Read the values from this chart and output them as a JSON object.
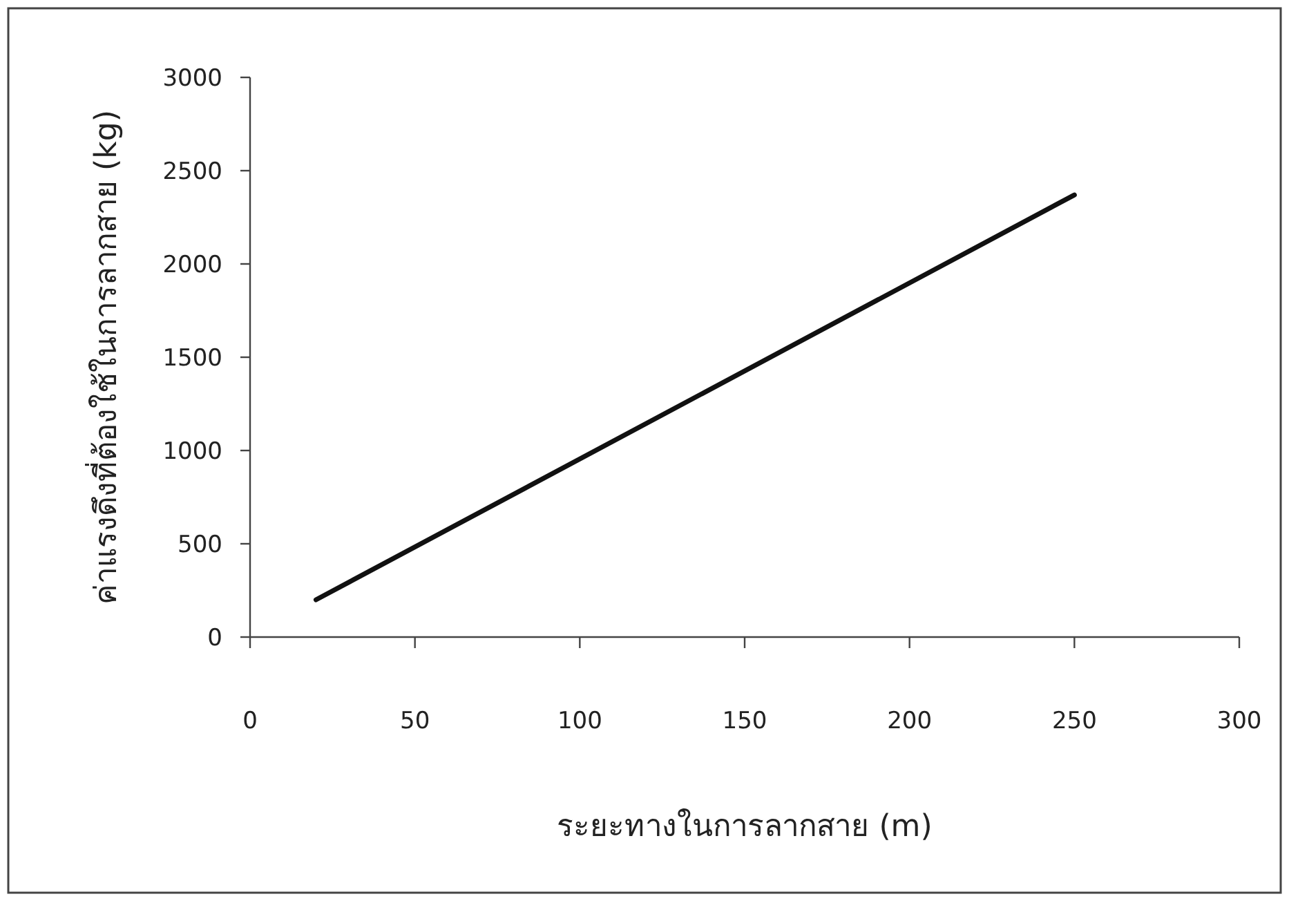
{
  "chart_data": {
    "type": "line",
    "xlabel": "ระยะทางในการลากสาย (m)",
    "ylabel": "ค่าแรงดึงที่ต้องใช้ในการลากสาย (kg)",
    "x": [
      20,
      250
    ],
    "series": [
      {
        "color": "#111111",
        "values": [
          200,
          2370
        ]
      }
    ],
    "xlim": [
      0,
      300
    ],
    "xticks": [
      0,
      50,
      100,
      150,
      200,
      250,
      300
    ],
    "ylim": [
      0,
      3000
    ],
    "yticks": [
      0,
      500,
      1000,
      1500,
      2000,
      2500,
      3000
    ],
    "grid": false,
    "marker": "none",
    "line_style": "solid"
  }
}
